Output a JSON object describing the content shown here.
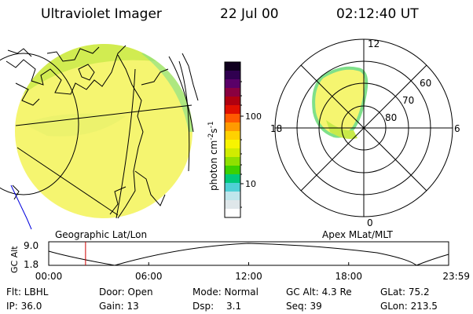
{
  "header": {
    "title": "Ultraviolet Imager",
    "date": "22 Jul 00",
    "time": "02:12:40 UT"
  },
  "colorbar": {
    "label": "photon cm",
    "label_sup1": "-2",
    "label_mid": "s",
    "label_sup2": "-1",
    "tick_100": "100",
    "tick_10": "10",
    "colors": [
      "#ffffff",
      "#dfe7ea",
      "#bfe6ec",
      "#4fd0d6",
      "#00c87a",
      "#3cd100",
      "#8fe000",
      "#d0ec00",
      "#f8f400",
      "#ffd100",
      "#ff9a00",
      "#ff5a00",
      "#e01000",
      "#b00010",
      "#8a0040",
      "#5a0068",
      "#300050",
      "#10001e"
    ]
  },
  "captions": {
    "left": "Geographic Lat/Lon",
    "right": "Apex MLat/MLT"
  },
  "polar": {
    "mlt_12": "12",
    "mlt_18": "18",
    "mlt_6": "6",
    "mlt_0": "0",
    "lat_60": "60",
    "lat_70": "70",
    "lat_80": "80"
  },
  "altplot": {
    "ylabel": "GC Alt",
    "y_top": "9.0",
    "y_bot": "1.8",
    "x_labels": [
      "00:00",
      "06:00",
      "12:00",
      "18:00",
      "23:59"
    ],
    "marker_hours": 2.21
  },
  "info": {
    "flt": "Flt: LBHL",
    "ip": "IP: 36.0",
    "door": "Door: Open",
    "gain": "Gain: 13",
    "mode": "Mode: Normal",
    "dsp_label": "Dsp:",
    "dsp_value": "3.1",
    "gcalt": "GC Alt: 4.3 Re",
    "seq": "Seq: 39",
    "glat": "GLat: 75.2",
    "glon": "GLon: 213.5"
  }
}
